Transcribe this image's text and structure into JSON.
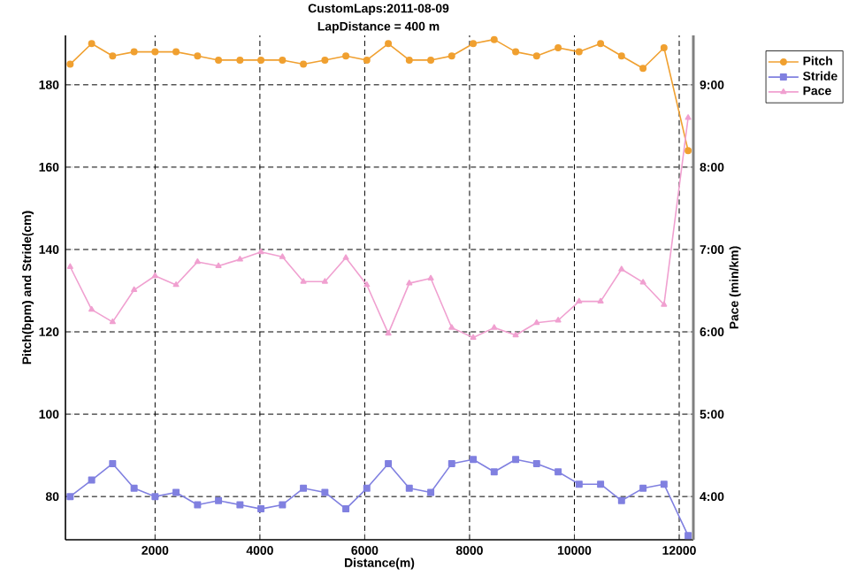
{
  "chart_data": {
    "type": "line",
    "title": "CustomLaps:2011-08-09",
    "subtitle": "LapDistance = 400 m",
    "xlabel": "Distance(m)",
    "ylabel": "Pitch(bpm) and Stride(cm)",
    "y2label": "Pace (min/km)",
    "x": [
      380,
      790,
      1190,
      1600,
      2000,
      2400,
      2810,
      3210,
      3620,
      4020,
      4430,
      4830,
      5240,
      5640,
      6040,
      6450,
      6850,
      7260,
      7660,
      8070,
      8470,
      8880,
      9280,
      9690,
      10090,
      10500,
      10900,
      11310,
      11710,
      12170
    ],
    "series": [
      {
        "name": "Pitch",
        "color": "#f0a030",
        "marker": "circle",
        "values": [
          185,
          190,
          187,
          188,
          188,
          188,
          187,
          186,
          186,
          186,
          186,
          185,
          186,
          187,
          186,
          190,
          186,
          186,
          187,
          190,
          191,
          188,
          187,
          189,
          188,
          190,
          187,
          184,
          189,
          164
        ]
      },
      {
        "name": "Stride",
        "color": "#8080e0",
        "marker": "square",
        "values": [
          80,
          84,
          88,
          82,
          80,
          81,
          78,
          79,
          78,
          77,
          78,
          82,
          81,
          77,
          82,
          88,
          82,
          81,
          88,
          89,
          86,
          89,
          88,
          86,
          83,
          83,
          79,
          82,
          83,
          70.5
        ]
      },
      {
        "name": "Pace",
        "color": "#f0a0d0",
        "marker": "triangle",
        "axis": "y2",
        "values": [
          6.79,
          6.27,
          6.12,
          6.51,
          6.68,
          6.57,
          6.85,
          6.8,
          6.88,
          6.97,
          6.91,
          6.61,
          6.61,
          6.9,
          6.57,
          5.98,
          6.59,
          6.65,
          6.05,
          5.93,
          6.05,
          5.96,
          6.11,
          6.14,
          6.37,
          6.37,
          6.76,
          6.6,
          6.33,
          8.6
        ]
      }
    ],
    "xlim": [
      290,
      12270
    ],
    "xticks": [
      2000,
      4000,
      6000,
      8000,
      10000,
      12000
    ],
    "ylim": [
      69.5,
      192
    ],
    "yticks": [
      80,
      100,
      120,
      140,
      160,
      180
    ],
    "y2lim": [
      3.475,
      9.6
    ],
    "y2ticks": [
      {
        "value": 4,
        "label": "4:00"
      },
      {
        "value": 5,
        "label": "5:00"
      },
      {
        "value": 6,
        "label": "6:00"
      },
      {
        "value": 7,
        "label": "7:00"
      },
      {
        "value": 8,
        "label": "8:00"
      },
      {
        "value": 9,
        "label": "9:00"
      }
    ],
    "grid": true,
    "legend": "right",
    "line_style": "solid"
  }
}
